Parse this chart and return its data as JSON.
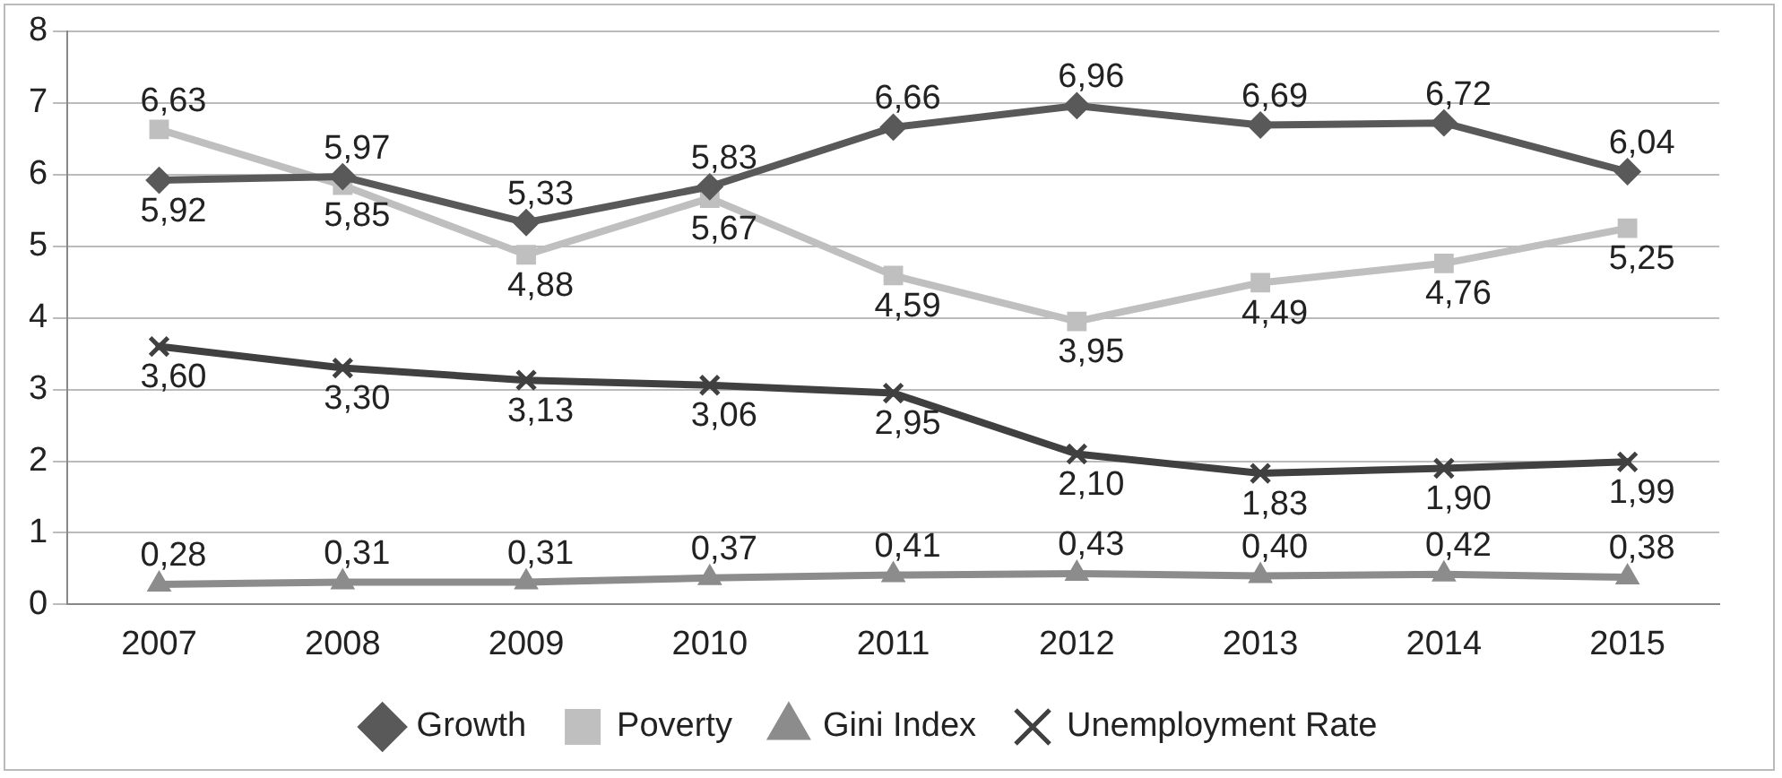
{
  "chart_data": {
    "type": "line",
    "categories": [
      "2007",
      "2008",
      "2009",
      "2010",
      "2011",
      "2012",
      "2013",
      "2014",
      "2015"
    ],
    "ylim": [
      0,
      8
    ],
    "yticks": [
      0,
      1,
      2,
      3,
      4,
      5,
      6,
      7,
      8
    ],
    "grid": "y",
    "legend": "bottom",
    "line_style": "solid",
    "series": [
      {
        "name": "Growth",
        "color": "#595959",
        "marker": "diamond",
        "values": [
          5.92,
          5.97,
          5.33,
          5.83,
          6.66,
          6.96,
          6.69,
          6.72,
          6.04
        ],
        "value_labels": [
          "5,92",
          "5,97",
          "5,33",
          "5,83",
          "6,66",
          "6,96",
          "6,69",
          "6,72",
          "6,04"
        ]
      },
      {
        "name": "Poverty",
        "color": "#bfbfbf",
        "marker": "square",
        "values": [
          6.63,
          5.85,
          4.88,
          5.67,
          4.59,
          3.95,
          4.49,
          4.76,
          5.25
        ],
        "value_labels": [
          "6,63",
          "5,85",
          "4,88",
          "5,67",
          "4,59",
          "3,95",
          "4,49",
          "4,76",
          "5,25"
        ]
      },
      {
        "name": "Gini Index",
        "color": "#8c8c8c",
        "marker": "triangle",
        "values": [
          0.28,
          0.31,
          0.31,
          0.37,
          0.41,
          0.43,
          0.4,
          0.42,
          0.38
        ],
        "value_labels": [
          "0,28",
          "0,31",
          "0,31",
          "0,37",
          "0,41",
          "0,43",
          "0,40",
          "0,42",
          "0,38"
        ]
      },
      {
        "name": "Unemployment Rate",
        "color": "#404040",
        "marker": "cross",
        "values": [
          3.6,
          3.3,
          3.13,
          3.06,
          2.95,
          2.1,
          1.83,
          1.9,
          1.99
        ],
        "value_labels": [
          "3,60",
          "3,30",
          "3,13",
          "3,06",
          "2,95",
          "2,10",
          "1,83",
          "1,90",
          "1,99"
        ]
      }
    ]
  }
}
